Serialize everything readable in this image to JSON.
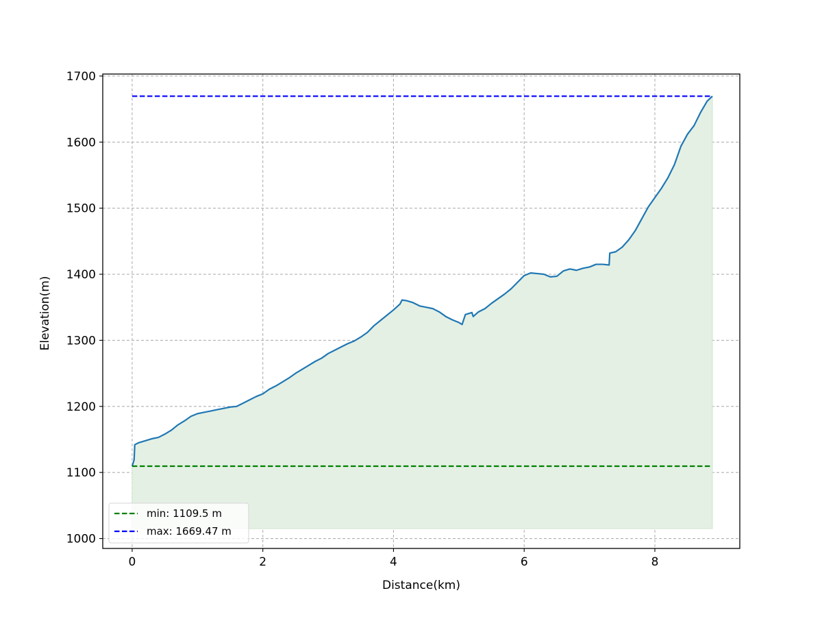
{
  "chart_data": {
    "type": "area",
    "title": "",
    "xlabel": "Distance(km)",
    "ylabel": "Elevation(m)",
    "xlim": [
      -0.45,
      9.3
    ],
    "ylim": [
      985,
      1703
    ],
    "x_ticks": [
      {
        "value": 0,
        "label": "0"
      },
      {
        "value": 2,
        "label": "2"
      },
      {
        "value": 4,
        "label": "4"
      },
      {
        "value": 6,
        "label": "6"
      },
      {
        "value": 8,
        "label": "8"
      }
    ],
    "y_ticks": [
      {
        "value": 1000,
        "label": "1000"
      },
      {
        "value": 1100,
        "label": "1100"
      },
      {
        "value": 1200,
        "label": "1200"
      },
      {
        "value": 1300,
        "label": "1300"
      },
      {
        "value": 1400,
        "label": "1400"
      },
      {
        "value": 1500,
        "label": "1500"
      },
      {
        "value": 1600,
        "label": "1600"
      },
      {
        "value": 1700,
        "label": "1700"
      }
    ],
    "grid": true,
    "legend_position": "lower-left",
    "fill_baseline": 1015,
    "series": [
      {
        "color": "#1f77b4",
        "fill_color": "#e4f0e4",
        "points": [
          [
            0.0,
            1109.5
          ],
          [
            0.03,
            1119
          ],
          [
            0.04,
            1142
          ],
          [
            0.1,
            1145
          ],
          [
            0.2,
            1148
          ],
          [
            0.3,
            1151
          ],
          [
            0.4,
            1153
          ],
          [
            0.5,
            1158
          ],
          [
            0.6,
            1164
          ],
          [
            0.7,
            1172
          ],
          [
            0.8,
            1178
          ],
          [
            0.9,
            1185
          ],
          [
            1.0,
            1189
          ],
          [
            1.1,
            1191
          ],
          [
            1.2,
            1193
          ],
          [
            1.3,
            1195
          ],
          [
            1.4,
            1197
          ],
          [
            1.5,
            1199
          ],
          [
            1.6,
            1200
          ],
          [
            1.7,
            1205
          ],
          [
            1.8,
            1210
          ],
          [
            1.9,
            1215
          ],
          [
            2.0,
            1219
          ],
          [
            2.1,
            1226
          ],
          [
            2.2,
            1231
          ],
          [
            2.3,
            1237
          ],
          [
            2.4,
            1243
          ],
          [
            2.5,
            1250
          ],
          [
            2.6,
            1256
          ],
          [
            2.7,
            1262
          ],
          [
            2.8,
            1268
          ],
          [
            2.9,
            1273
          ],
          [
            3.0,
            1280
          ],
          [
            3.1,
            1285
          ],
          [
            3.2,
            1290
          ],
          [
            3.3,
            1295
          ],
          [
            3.4,
            1299
          ],
          [
            3.5,
            1305
          ],
          [
            3.6,
            1312
          ],
          [
            3.7,
            1322
          ],
          [
            3.8,
            1330
          ],
          [
            3.9,
            1338
          ],
          [
            4.0,
            1346
          ],
          [
            4.1,
            1355
          ],
          [
            4.13,
            1361
          ],
          [
            4.2,
            1360
          ],
          [
            4.3,
            1357
          ],
          [
            4.4,
            1352
          ],
          [
            4.5,
            1350
          ],
          [
            4.6,
            1348
          ],
          [
            4.7,
            1343
          ],
          [
            4.8,
            1336
          ],
          [
            4.9,
            1331
          ],
          [
            5.0,
            1327
          ],
          [
            5.05,
            1324
          ],
          [
            5.1,
            1339
          ],
          [
            5.2,
            1342
          ],
          [
            5.22,
            1336
          ],
          [
            5.3,
            1343
          ],
          [
            5.4,
            1348
          ],
          [
            5.5,
            1356
          ],
          [
            5.6,
            1363
          ],
          [
            5.7,
            1370
          ],
          [
            5.8,
            1378
          ],
          [
            5.9,
            1388
          ],
          [
            6.0,
            1398
          ],
          [
            6.1,
            1402
          ],
          [
            6.2,
            1401
          ],
          [
            6.3,
            1400
          ],
          [
            6.4,
            1396
          ],
          [
            6.5,
            1397
          ],
          [
            6.6,
            1405
          ],
          [
            6.7,
            1408
          ],
          [
            6.8,
            1406
          ],
          [
            6.9,
            1409
          ],
          [
            7.0,
            1411
          ],
          [
            7.1,
            1415
          ],
          [
            7.2,
            1415
          ],
          [
            7.3,
            1414
          ],
          [
            7.31,
            1432
          ],
          [
            7.4,
            1434
          ],
          [
            7.5,
            1441
          ],
          [
            7.6,
            1452
          ],
          [
            7.7,
            1466
          ],
          [
            7.8,
            1484
          ],
          [
            7.9,
            1502
          ],
          [
            8.0,
            1516
          ],
          [
            8.1,
            1530
          ],
          [
            8.2,
            1546
          ],
          [
            8.3,
            1566
          ],
          [
            8.4,
            1594
          ],
          [
            8.5,
            1612
          ],
          [
            8.6,
            1625
          ],
          [
            8.7,
            1645
          ],
          [
            8.8,
            1662
          ],
          [
            8.88,
            1669.47
          ]
        ]
      }
    ],
    "reference_lines": [
      {
        "name": "min: 1109.5 m",
        "value": 1109.5,
        "x_from": 0,
        "x_to": 8.88,
        "color": "#008000",
        "style": "dashed"
      },
      {
        "name": "max: 1669.47 m",
        "value": 1669.47,
        "x_from": 0,
        "x_to": 8.88,
        "color": "#0000ff",
        "style": "dashed"
      }
    ]
  }
}
